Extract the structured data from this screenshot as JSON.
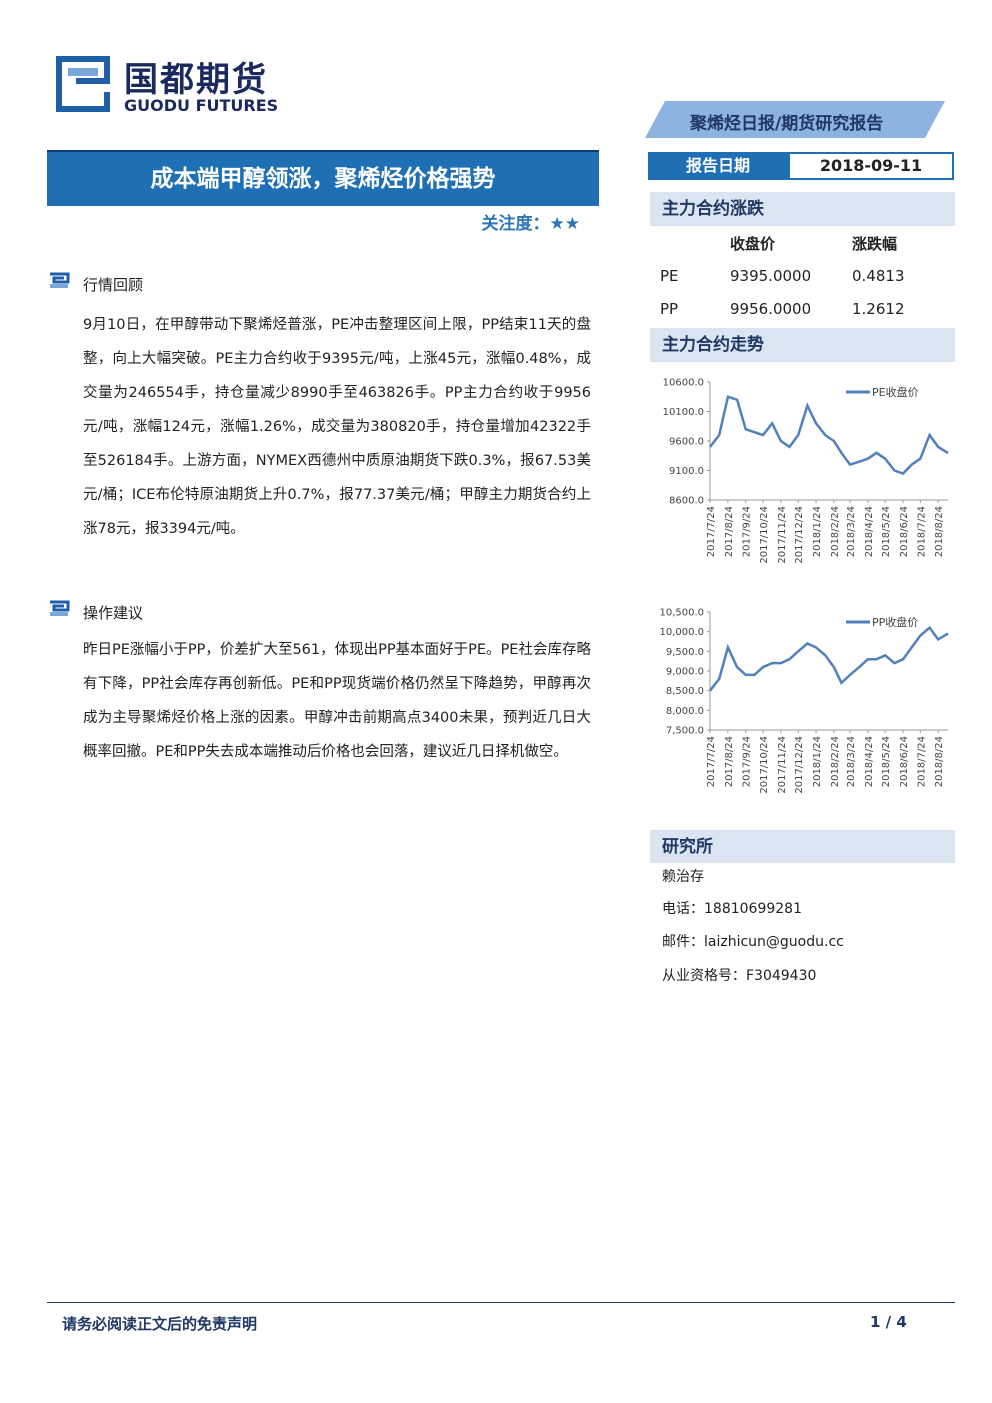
{
  "header": {
    "logo_cn": "国都期货",
    "logo_en": "GUODU FUTURES",
    "report_tag": "聚烯烃日报/期货研究报告"
  },
  "title": "成本端甲醇领涨，聚烯烃价格强势",
  "attention": "关注度：★★",
  "sections": [
    {
      "heading": "行情回顾",
      "body": "9月10日，在甲醇带动下聚烯烃普涨，PE冲击整理区间上限，PP结束11天的盘整，向上大幅突破。PE主力合约收于9395元/吨，上涨45元，涨幅0.48%，成交量为246554手，持仓量减少8990手至463826手。PP主力合约收于9956元/吨，涨幅124元，涨幅1.26%，成交量为380820手，持仓量增加42322手至526184手。上游方面，NYMEX西德州中质原油期货下跌0.3%，报67.53美元/桶；ICE布伦特原油期货上升0.7%，报77.37美元/桶；甲醇主力期货合约上涨78元，报3394元/吨。"
    },
    {
      "heading": "操作建议",
      "body": "昨日PE涨幅小于PP，价差扩大至561，体现出PP基本面好于PE。PE社会库存略有下降，PP社会库存再创新低。PE和PP现货端价格仍然呈下降趋势，甲醇再次成为主导聚烯烃价格上涨的因素。甲醇冲击前期高点3400未果，预判近几日大概率回撤。PE和PP失去成本端推动后价格也会回落，建议近几日择机做空。"
    }
  ],
  "sidebar": {
    "date_label": "报告日期",
    "date": "2018-09-11",
    "quote_title": "主力合约涨跌",
    "quote_table": {
      "columns": [
        "收盘价",
        "涨跌幅"
      ],
      "rows": [
        [
          "PE",
          "9395.0000",
          "0.4813"
        ],
        [
          "PP",
          "9956.0000",
          "1.2612"
        ]
      ]
    },
    "trend_title": "主力合约走势",
    "institute_title": "研究所",
    "contacts": [
      "赖治存",
      "电话：18810699281",
      "邮件：laizhicun@guodu.cc",
      "从业资格号：F3049430"
    ]
  },
  "chart_data": [
    {
      "type": "line",
      "x": [
        "2017/7/24",
        "2017/8/9",
        "2017/8/24",
        "2017/9/9",
        "2017/9/24",
        "2017/10/9",
        "2017/10/24",
        "2017/11/9",
        "2017/11/24",
        "2017/12/9",
        "2017/12/24",
        "2018/1/9",
        "2018/1/24",
        "2018/2/9",
        "2018/2/24",
        "2018/3/9",
        "2018/3/24",
        "2018/4/9",
        "2018/4/24",
        "2018/5/9",
        "2018/5/24",
        "2018/6/9",
        "2018/6/24",
        "2018/7/9",
        "2018/7/24",
        "2018/8/9",
        "2018/8/24",
        "2018/9/10"
      ],
      "series": [
        {
          "name": "PE收盘价",
          "color": "#4f81bd",
          "values": [
            9500,
            9700,
            10350,
            10300,
            9800,
            9750,
            9700,
            9900,
            9600,
            9500,
            9700,
            10200,
            9900,
            9700,
            9600,
            9400,
            9200,
            9250,
            9300,
            9400,
            9300,
            9100,
            9050,
            9200,
            9300,
            9700,
            9500,
            9395
          ]
        }
      ],
      "ylim": [
        8600,
        10600
      ],
      "yticks": [
        {
          "value": 8600,
          "label": "8600.0"
        },
        {
          "value": 9100,
          "label": "9100.0"
        },
        {
          "value": 9600,
          "label": "9600.0"
        },
        {
          "value": 10100,
          "label": "10100.0"
        },
        {
          "value": 10600,
          "label": "10600.0"
        }
      ],
      "xticks": [
        "2017/7/24",
        "2017/8/24",
        "2017/9/24",
        "2017/10/24",
        "2017/11/24",
        "2017/12/24",
        "2018/1/24",
        "2018/2/24",
        "2018/3/24",
        "2018/4/24",
        "2018/5/24",
        "2018/6/24",
        "2018/7/24",
        "2018/8/24"
      ]
    },
    {
      "type": "line",
      "x": [
        "2017/7/24",
        "2017/8/9",
        "2017/8/24",
        "2017/9/9",
        "2017/9/24",
        "2017/10/9",
        "2017/10/24",
        "2017/11/9",
        "2017/11/24",
        "2017/12/9",
        "2017/12/24",
        "2018/1/9",
        "2018/1/24",
        "2018/2/9",
        "2018/2/24",
        "2018/3/9",
        "2018/3/24",
        "2018/4/9",
        "2018/4/24",
        "2018/5/9",
        "2018/5/24",
        "2018/6/9",
        "2018/6/24",
        "2018/7/9",
        "2018/7/24",
        "2018/8/9",
        "2018/8/24",
        "2018/9/10"
      ],
      "series": [
        {
          "name": "PP收盘价",
          "color": "#4f81bd",
          "values": [
            8500,
            8800,
            9600,
            9100,
            8900,
            8900,
            9100,
            9200,
            9200,
            9300,
            9500,
            9700,
            9600,
            9400,
            9100,
            8700,
            8900,
            9100,
            9300,
            9300,
            9400,
            9200,
            9300,
            9600,
            9900,
            10100,
            9800,
            9956
          ]
        }
      ],
      "ylim": [
        7500,
        10500
      ],
      "yticks": [
        {
          "value": 7500,
          "label": "7,500.0"
        },
        {
          "value": 8000,
          "label": "8,000.0"
        },
        {
          "value": 8500,
          "label": "8,500.0"
        },
        {
          "value": 9000,
          "label": "9,000.0"
        },
        {
          "value": 9500,
          "label": "9,500.0"
        },
        {
          "value": 10000,
          "label": "10,000.0"
        },
        {
          "value": 10500,
          "label": "10,500.0"
        }
      ],
      "xticks": [
        "2017/7/24",
        "2017/8/24",
        "2017/9/24",
        "2017/10/24",
        "2017/11/24",
        "2017/12/24",
        "2018/1/24",
        "2018/2/24",
        "2018/3/24",
        "2018/4/24",
        "2018/5/24",
        "2018/6/24",
        "2018/7/24",
        "2018/8/24"
      ]
    }
  ],
  "footer": {
    "disclaimer": "请务必阅读正文后的免责声明",
    "page": "1 / 4"
  }
}
